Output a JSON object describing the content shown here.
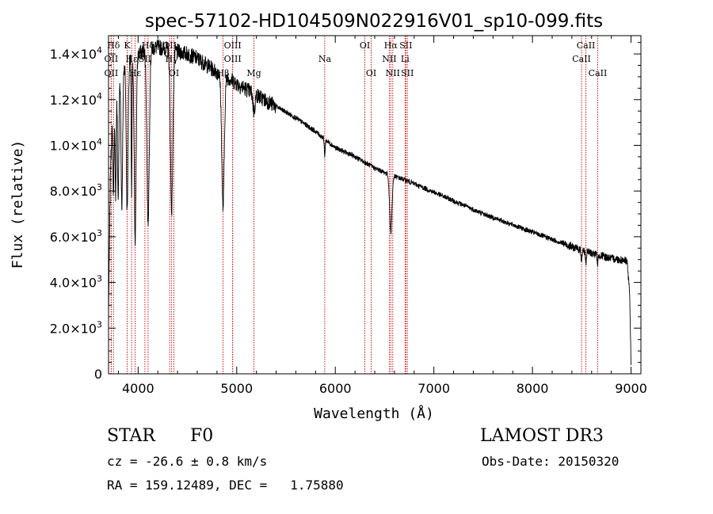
{
  "chart_data": {
    "type": "line",
    "title": "spec-57102-HD104509N022916V01_sp10-099.fits",
    "xlabel": "Wavelength (Å)",
    "ylabel": "Flux (relative)",
    "xlim": [
      3700,
      9100
    ],
    "ylim": [
      0,
      14800
    ],
    "x_ticks": [
      {
        "value": 4000,
        "label": "4000"
      },
      {
        "value": 5000,
        "label": "5000"
      },
      {
        "value": 6000,
        "label": "6000"
      },
      {
        "value": 7000,
        "label": "7000"
      },
      {
        "value": 8000,
        "label": "8000"
      },
      {
        "value": 9000,
        "label": "9000"
      }
    ],
    "y_ticks": [
      {
        "value": 0,
        "mant": "0",
        "exp": ""
      },
      {
        "value": 2000,
        "mant": "2.0×10",
        "exp": "3"
      },
      {
        "value": 4000,
        "mant": "4.0×10",
        "exp": "3"
      },
      {
        "value": 6000,
        "mant": "6.0×10",
        "exp": "3"
      },
      {
        "value": 8000,
        "mant": "8.0×10",
        "exp": "3"
      },
      {
        "value": 10000,
        "mant": "1.0×10",
        "exp": "4"
      },
      {
        "value": 12000,
        "mant": "1.2×10",
        "exp": "4"
      },
      {
        "value": 14000,
        "mant": "1.4×10",
        "exp": "4"
      }
    ],
    "continuum": [
      [
        3700,
        2500
      ],
      [
        3720,
        9000
      ],
      [
        3750,
        12500
      ],
      [
        3800,
        13200
      ],
      [
        3900,
        13700
      ],
      [
        4000,
        14000
      ],
      [
        4100,
        14200
      ],
      [
        4200,
        14300
      ],
      [
        4300,
        14200
      ],
      [
        4400,
        14100
      ],
      [
        4500,
        14000
      ],
      [
        4600,
        13800
      ],
      [
        4700,
        13500
      ],
      [
        4800,
        13200
      ],
      [
        4900,
        13000
      ],
      [
        5000,
        12700
      ],
      [
        5200,
        12200
      ],
      [
        5400,
        11700
      ],
      [
        5600,
        11200
      ],
      [
        5800,
        10600
      ],
      [
        6000,
        9900
      ],
      [
        6200,
        9500
      ],
      [
        6400,
        9000
      ],
      [
        6560,
        8700
      ],
      [
        6700,
        8500
      ],
      [
        7000,
        7950
      ],
      [
        7500,
        7000
      ],
      [
        8000,
        6200
      ],
      [
        8500,
        5400
      ],
      [
        8800,
        5050
      ],
      [
        8960,
        4950
      ],
      [
        8985,
        3500
      ],
      [
        9000,
        500
      ]
    ],
    "absorption_lines": [
      {
        "center": 3750,
        "depth": 4500,
        "width": 6
      },
      {
        "center": 3771,
        "depth": 5000,
        "width": 6
      },
      {
        "center": 3798,
        "depth": 5500,
        "width": 7
      },
      {
        "center": 3835,
        "depth": 6000,
        "width": 8
      },
      {
        "center": 3889,
        "depth": 6500,
        "width": 9
      },
      {
        "center": 3934,
        "depth": 6000,
        "width": 4
      },
      {
        "center": 3970,
        "depth": 8000,
        "width": 10
      },
      {
        "center": 4101,
        "depth": 7500,
        "width": 12
      },
      {
        "center": 4340,
        "depth": 7000,
        "width": 12
      },
      {
        "center": 4861,
        "depth": 5800,
        "width": 13
      },
      {
        "center": 5175,
        "depth": 800,
        "width": 10
      },
      {
        "center": 5893,
        "depth": 700,
        "width": 5
      },
      {
        "center": 6563,
        "depth": 2500,
        "width": 12
      },
      {
        "center": 8498,
        "depth": 400,
        "width": 5
      },
      {
        "center": 8542,
        "depth": 500,
        "width": 5
      },
      {
        "center": 8662,
        "depth": 400,
        "width": 5
      }
    ],
    "marker_lines": [
      {
        "label": "Hδ",
        "x": 3750,
        "row": 0
      },
      {
        "label": "OII",
        "x": 3727,
        "row": 1
      },
      {
        "label": "OII",
        "x": 3727,
        "row": 2
      },
      {
        "label": "K",
        "x": 3889,
        "row": 0
      },
      {
        "label": "Hε",
        "x": 3934,
        "row": 1
      },
      {
        "label": "Hε",
        "x": 3970,
        "row": 2
      },
      {
        "label": "Hδ",
        "x": 4101,
        "row": 0
      },
      {
        "label": "SII",
        "x": 4069,
        "row": 1
      },
      {
        "label": "OII",
        "x": 4320,
        "row": 0
      },
      {
        "label": "Hγ",
        "x": 4340,
        "row": 1
      },
      {
        "label": "OI",
        "x": 4363,
        "row": 2
      },
      {
        "label": "OIII",
        "x": 4959,
        "row": 0
      },
      {
        "label": "OIII",
        "x": 4959,
        "row": 1
      },
      {
        "label": "Hβ",
        "x": 4861,
        "row": 2
      },
      {
        "label": "Mg",
        "x": 5175,
        "row": 2
      },
      {
        "label": "Na",
        "x": 5893,
        "row": 1
      },
      {
        "label": "OI",
        "x": 6300,
        "row": 0
      },
      {
        "label": "OI",
        "x": 6364,
        "row": 2
      },
      {
        "label": "Hα",
        "x": 6563,
        "row": 0
      },
      {
        "label": "NII",
        "x": 6548,
        "row": 1
      },
      {
        "label": "NII",
        "x": 6583,
        "row": 2
      },
      {
        "label": "SII",
        "x": 6716,
        "row": 0
      },
      {
        "label": "Li",
        "x": 6708,
        "row": 1
      },
      {
        "label": "SII",
        "x": 6731,
        "row": 2
      },
      {
        "label": "CaII",
        "x": 8542,
        "row": 0
      },
      {
        "label": "CaII",
        "x": 8498,
        "row": 1
      },
      {
        "label": "CaII",
        "x": 8662,
        "row": 2
      }
    ]
  },
  "info": {
    "object_class": "STAR",
    "subclass": "F0",
    "survey": "LAMOST DR3",
    "redshift": "cz = -26.6 ± 0.8 km/s",
    "obs_date": "Obs-Date: 20150320",
    "coords": "RA = 159.12489, DEC =   1.75880"
  }
}
